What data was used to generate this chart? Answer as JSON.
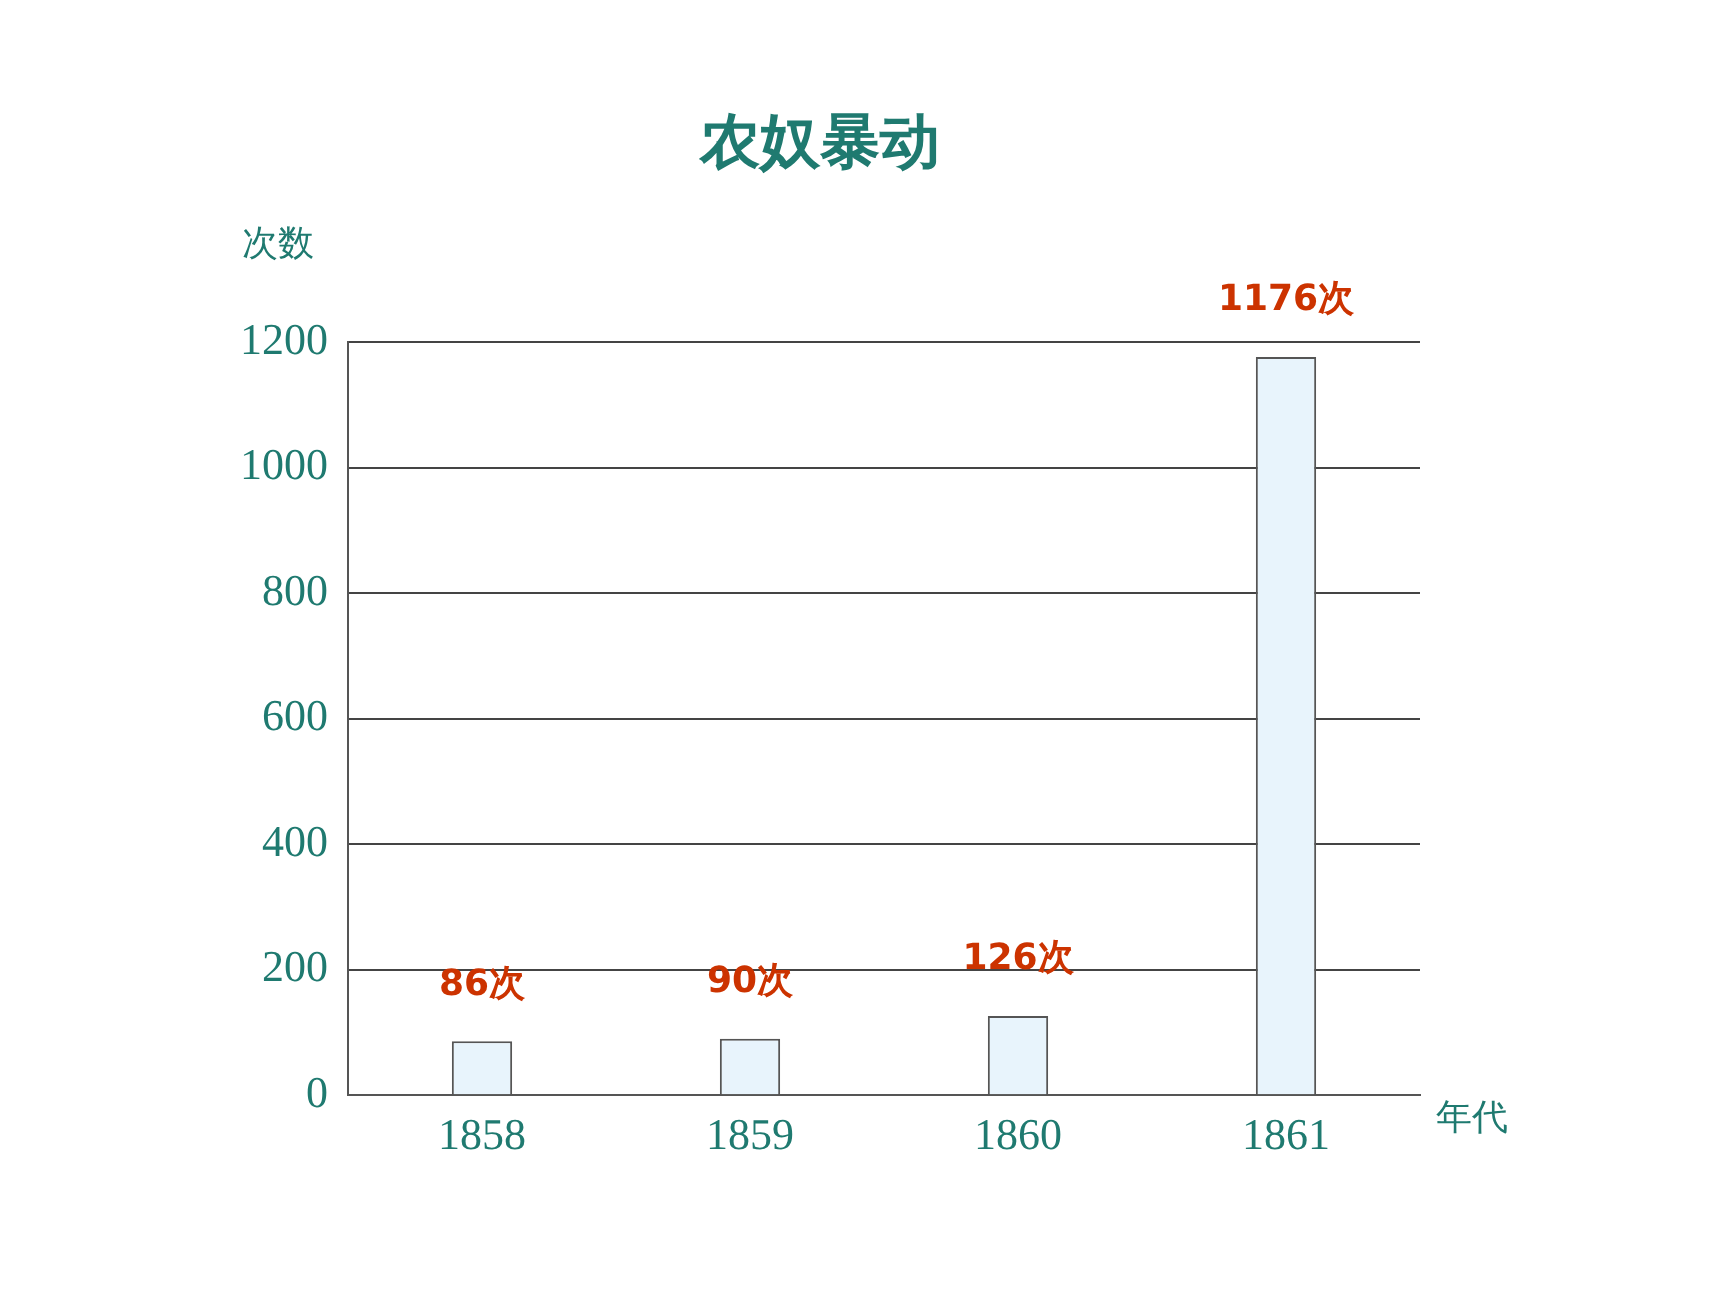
{
  "chart_data": {
    "type": "bar",
    "title": "农奴暴动",
    "xlabel": "年代",
    "ylabel": "次数",
    "categories": [
      "1858",
      "1859",
      "1860",
      "1861"
    ],
    "values": [
      86,
      90,
      126,
      1176
    ],
    "value_labels": [
      "86次",
      "90次",
      "126次",
      "1176次"
    ],
    "color": "#e8f4fc",
    "ylim": [
      0,
      1200
    ],
    "yticks": [
      0,
      200,
      400,
      600,
      800,
      1000,
      1200
    ],
    "grid": "y"
  }
}
